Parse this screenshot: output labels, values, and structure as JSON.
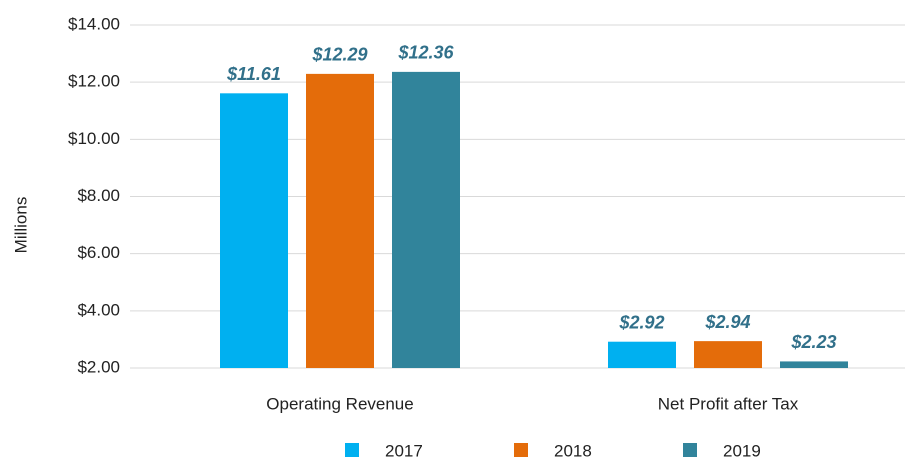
{
  "chart_data": {
    "type": "bar",
    "y_axis_label": "Millions",
    "categories": [
      "Operating Revenue",
      "Net Profit after Tax"
    ],
    "series": [
      {
        "name": "2017",
        "color": "#00b0f0",
        "values": [
          11.61,
          2.92
        ],
        "value_labels": [
          "$11.61",
          "$2.92"
        ]
      },
      {
        "name": "2018",
        "color": "#e46c0a",
        "values": [
          12.29,
          2.94
        ],
        "value_labels": [
          "$12.29",
          "$2.94"
        ]
      },
      {
        "name": "2019",
        "color": "#31849b",
        "values": [
          12.36,
          2.23
        ],
        "value_labels": [
          "$12.36",
          "$2.23"
        ]
      }
    ],
    "ylim": [
      2,
      14
    ],
    "yticks": [
      {
        "value": 2,
        "label": "$2.00"
      },
      {
        "value": 4,
        "label": "$4.00"
      },
      {
        "value": 6,
        "label": "$6.00"
      },
      {
        "value": 8,
        "label": "$8.00"
      },
      {
        "value": 10,
        "label": "$10.00"
      },
      {
        "value": 12,
        "label": "$12.00"
      },
      {
        "value": 14,
        "label": "$14.00"
      }
    ],
    "grid": true,
    "legend": "bottom"
  }
}
